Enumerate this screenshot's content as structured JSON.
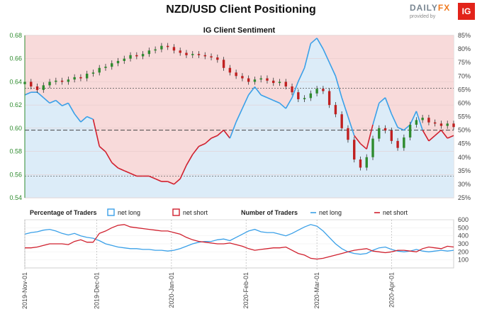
{
  "header": {
    "title": "NZD/USD Client Positioning",
    "logo_daily": "DAILY",
    "logo_fx": "FX",
    "logo_provided": "provided by",
    "logo_ig": "IG"
  },
  "colors": {
    "net_long": "#3aa0e8",
    "net_short": "#d0202e",
    "bull_candle": "#2e8b2e",
    "bear_candle": "#c02020",
    "long_fill": "#dcecf8",
    "short_fill": "#f8dada"
  },
  "chart_data": [
    {
      "type": "line",
      "title": "IG Client Sentiment",
      "y_left": {
        "range": [
          0.54,
          0.68
        ],
        "ticks": [
          "0.68",
          "0.66",
          "0.64",
          "0.62",
          "0.60",
          "0.58",
          "0.56",
          "0.54"
        ]
      },
      "y_right": {
        "range": [
          25,
          85
        ],
        "ticks": [
          "85%",
          "80%",
          "75%",
          "70%",
          "65%",
          "60%",
          "55%",
          "50%",
          "45%",
          "40%",
          "35%",
          "30%",
          "25%"
        ]
      },
      "reference_line": {
        "label": "50%",
        "value": 50
      },
      "price_series": {
        "name": "NZD/USD price (candles)",
        "y": [
          0.64,
          0.636,
          0.633,
          0.637,
          0.64,
          0.641,
          0.64,
          0.642,
          0.644,
          0.643,
          0.647,
          0.648,
          0.652,
          0.653,
          0.656,
          0.658,
          0.66,
          0.663,
          0.662,
          0.664,
          0.667,
          0.668,
          0.671,
          0.67,
          0.667,
          0.665,
          0.663,
          0.664,
          0.663,
          0.662,
          0.661,
          0.659,
          0.652,
          0.648,
          0.645,
          0.643,
          0.64,
          0.642,
          0.643,
          0.641,
          0.639,
          0.64,
          0.636,
          0.631,
          0.625,
          0.626,
          0.63,
          0.634,
          0.632,
          0.62,
          0.612,
          0.6,
          0.59,
          0.573,
          0.566,
          0.575,
          0.591,
          0.6,
          0.598,
          0.589,
          0.583,
          0.592,
          0.603,
          0.607,
          0.609,
          0.605,
          0.604,
          0.602,
          0.604,
          0.601
        ]
      },
      "sentiment_series": {
        "name": "net long %",
        "y": [
          63,
          64,
          64,
          62,
          60,
          61,
          59,
          60,
          56,
          53,
          55,
          54,
          44,
          42,
          38,
          36,
          35,
          34,
          33,
          33,
          33,
          32,
          31,
          31,
          30,
          32,
          37,
          41,
          44,
          45,
          47,
          48,
          50,
          47,
          53,
          58,
          63,
          66,
          63,
          62,
          61,
          60,
          58,
          62,
          68,
          73,
          82,
          84,
          80,
          75,
          70,
          62,
          55,
          48,
          45,
          43,
          52,
          60,
          62,
          56,
          51,
          50,
          52,
          57,
          50,
          46,
          48,
          50,
          47,
          48
        ]
      }
    },
    {
      "type": "line",
      "title": "Percentage of Traders",
      "series": [
        {
          "name": "net long"
        },
        {
          "name": "net short"
        }
      ],
      "y_range": [
        0,
        100
      ]
    },
    {
      "type": "line",
      "title": "Number of Traders",
      "series": [
        {
          "name": "net long",
          "values": [
            420,
            440,
            450,
            470,
            480,
            460,
            430,
            410,
            430,
            400,
            380,
            370,
            340,
            300,
            280,
            260,
            250,
            240,
            240,
            230,
            230,
            220,
            220,
            210,
            220,
            240,
            270,
            300,
            320,
            330,
            330,
            350,
            360,
            340,
            380,
            420,
            460,
            480,
            450,
            440,
            440,
            420,
            400,
            430,
            470,
            510,
            540,
            520,
            460,
            380,
            300,
            240,
            200,
            180,
            170,
            180,
            220,
            250,
            260,
            230,
            210,
            200,
            210,
            230,
            210,
            200,
            210,
            220,
            210,
            220
          ]
        },
        {
          "name": "net short",
          "values": [
            250,
            250,
            260,
            280,
            300,
            300,
            300,
            290,
            330,
            350,
            320,
            320,
            430,
            460,
            500,
            530,
            540,
            510,
            500,
            490,
            480,
            470,
            460,
            460,
            440,
            420,
            380,
            350,
            330,
            320,
            310,
            300,
            300,
            310,
            290,
            270,
            240,
            220,
            230,
            240,
            250,
            250,
            260,
            220,
            180,
            160,
            120,
            110,
            120,
            140,
            160,
            180,
            200,
            220,
            230,
            240,
            210,
            200,
            190,
            200,
            220,
            220,
            210,
            200,
            240,
            260,
            250,
            240,
            270,
            260
          ]
        }
      ],
      "y_range": [
        0,
        600
      ],
      "y_ticks": [
        "600",
        "500",
        "400",
        "300",
        "200",
        "100"
      ]
    }
  ],
  "legend": {
    "pct_title": "Percentage of Traders",
    "num_title": "Number of Traders",
    "net_long": "net long",
    "net_short": "net short"
  },
  "x_axis": {
    "ticks": [
      "2019-Nov-01",
      "2019-Dec-01",
      "2020-Jan-01",
      "2020-Feb-01",
      "2020-Mar-01",
      "2020-Apr-01"
    ]
  }
}
